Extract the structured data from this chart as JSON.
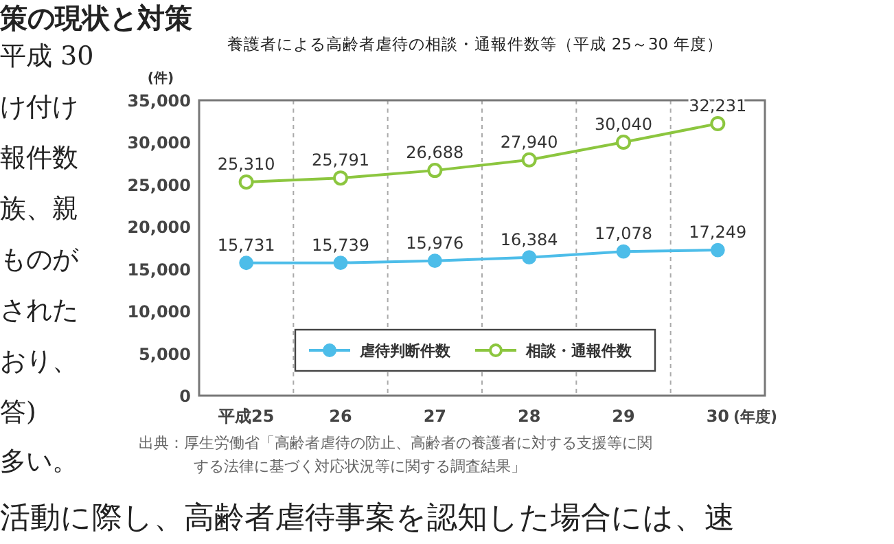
{
  "chart_data": {
    "type": "line",
    "title": "養護者による高齢者虐待の相談・通報件数等（平成 25～30 年度）",
    "categories": [
      "平成25",
      "26",
      "27",
      "28",
      "29",
      "30"
    ],
    "xlabel": "(年度)",
    "ylabel": "(件)",
    "series": [
      {
        "name": "虐待判断件数",
        "color": "#4dbde9",
        "values": [
          15731,
          15739,
          15976,
          16384,
          17078,
          17249
        ],
        "value_labels": [
          "15,731",
          "15,739",
          "15,976",
          "16,384",
          "17,078",
          "17,249"
        ]
      },
      {
        "name": "相談・通報件数",
        "color": "#8cc63f",
        "values": [
          25310,
          25791,
          26688,
          27940,
          30040,
          32231
        ],
        "value_labels": [
          "25,310",
          "25,791",
          "26,688",
          "27,940",
          "30,040",
          "32,231"
        ]
      }
    ],
    "ylim": [
      0,
      35000
    ],
    "yticks": [
      {
        "value": 0,
        "label": "0"
      },
      {
        "value": 5000,
        "label": "5,000"
      },
      {
        "value": 10000,
        "label": "10,000"
      },
      {
        "value": 15000,
        "label": "15,000"
      },
      {
        "value": 20000,
        "label": "20,000"
      },
      {
        "value": 25000,
        "label": "25,000"
      },
      {
        "value": 30000,
        "label": "30,000"
      },
      {
        "value": 35000,
        "label": "35,000"
      }
    ],
    "grid": "x",
    "legend": "bottom",
    "marker": "circle",
    "annotations": [
      "出典：厚生労働省「高齢者虐待の防止、高齢者の養護者に対する支援等に関する法律に基づく対応状況等に関する調査結果」",
      "策の現状と対策",
      "平成 30",
      "け付け",
      "報件数",
      "族、親",
      "ものが",
      "された",
      "おり、",
      "答)",
      "多い。",
      "活動に際し、高齢者虐待事案を認知した場合には、速"
    ]
  }
}
